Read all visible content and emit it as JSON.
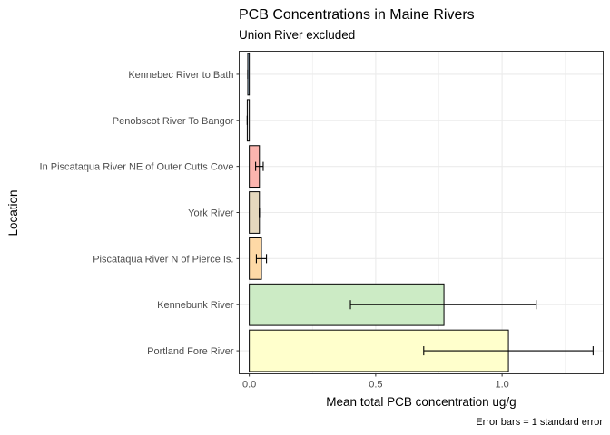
{
  "chart_data": {
    "type": "bar",
    "orientation": "horizontal",
    "title": "PCB Concentrations in Maine Rivers",
    "subtitle": "Union River excluded",
    "xlabel": "Mean total PCB concentration ug/g",
    "ylabel": "Location",
    "caption": "Error bars = 1 standard error",
    "xlim": [
      -0.04,
      1.4
    ],
    "x_ticks": [
      0.0,
      0.5,
      1.0
    ],
    "x_tick_labels": [
      "0.0",
      "0.5",
      "1.0"
    ],
    "grid": true,
    "categories": [
      "Kennebec River to Bath",
      "Penobscot River To Bangor",
      "In Piscataqua River NE of Outer Cutts Cove",
      "York River",
      "Piscataqua River N of Pierce Is.",
      "Kennebunk River",
      "Portland Fore River"
    ],
    "values": [
      -0.006,
      -0.008,
      0.04,
      0.04,
      0.048,
      0.77,
      1.025
    ],
    "error_bars": [
      {
        "low": -0.006,
        "high": -0.006
      },
      {
        "low": -0.008,
        "high": -0.008
      },
      {
        "low": 0.025,
        "high": 0.055
      },
      {
        "low": 0.04,
        "high": 0.04
      },
      {
        "low": 0.028,
        "high": 0.068
      },
      {
        "low": 0.4,
        "high": 1.135
      },
      {
        "low": 0.69,
        "high": 1.36
      }
    ],
    "colors": [
      "#b3cde3",
      "#e6e6e6",
      "#fbb4ae",
      "#e5d8bd",
      "#fed9a6",
      "#ccebc5",
      "#ffffcc"
    ],
    "bar_outline": "#000000",
    "panel_border": "#333333",
    "grid_color": "#ebebeb"
  }
}
